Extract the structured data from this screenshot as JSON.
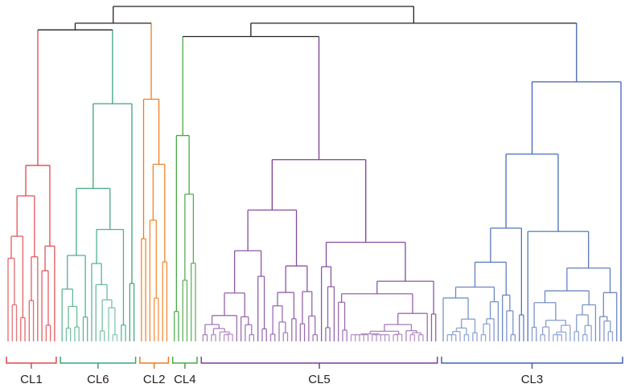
{
  "chart_data": {
    "type": "dendrogram",
    "title": "",
    "orientation": "top-down",
    "root_color": "#222222",
    "clusters": [
      {
        "id": "CL1",
        "label": "CL1",
        "color": "#e0474c",
        "leaf_count": 12,
        "merge_height": 0.8
      },
      {
        "id": "CL6",
        "label": "CL6",
        "color": "#3aa57a",
        "leaf_count": 18,
        "merge_height": 0.83
      },
      {
        "id": "CL2",
        "label": "CL2",
        "color": "#ee7d1e",
        "leaf_count": 7,
        "merge_height": 0.87
      },
      {
        "id": "CL4",
        "label": "CL4",
        "color": "#4aa84a",
        "leaf_count": 6,
        "merge_height": 0.84
      },
      {
        "id": "CL5",
        "label": "CL5",
        "color": "#7a3f98",
        "leaf_count": 56,
        "merge_height": 0.88
      },
      {
        "id": "CL3",
        "label": "CL3",
        "color": "#3f63b0",
        "leaf_count": 43,
        "merge_height": 0.94
      }
    ],
    "top_merges": [
      {
        "children": [
          "CL1",
          "CL6"
        ],
        "height": 0.93
      },
      {
        "children": [
          "CL1+CL6",
          "CL2"
        ],
        "height": 0.95
      },
      {
        "children": [
          "CL4",
          "CL5"
        ],
        "height": 0.91
      },
      {
        "children": [
          "CL4+CL5",
          "CL3"
        ],
        "height": 0.95
      },
      {
        "children": [
          "left",
          "right"
        ],
        "height": 1.0
      }
    ]
  }
}
